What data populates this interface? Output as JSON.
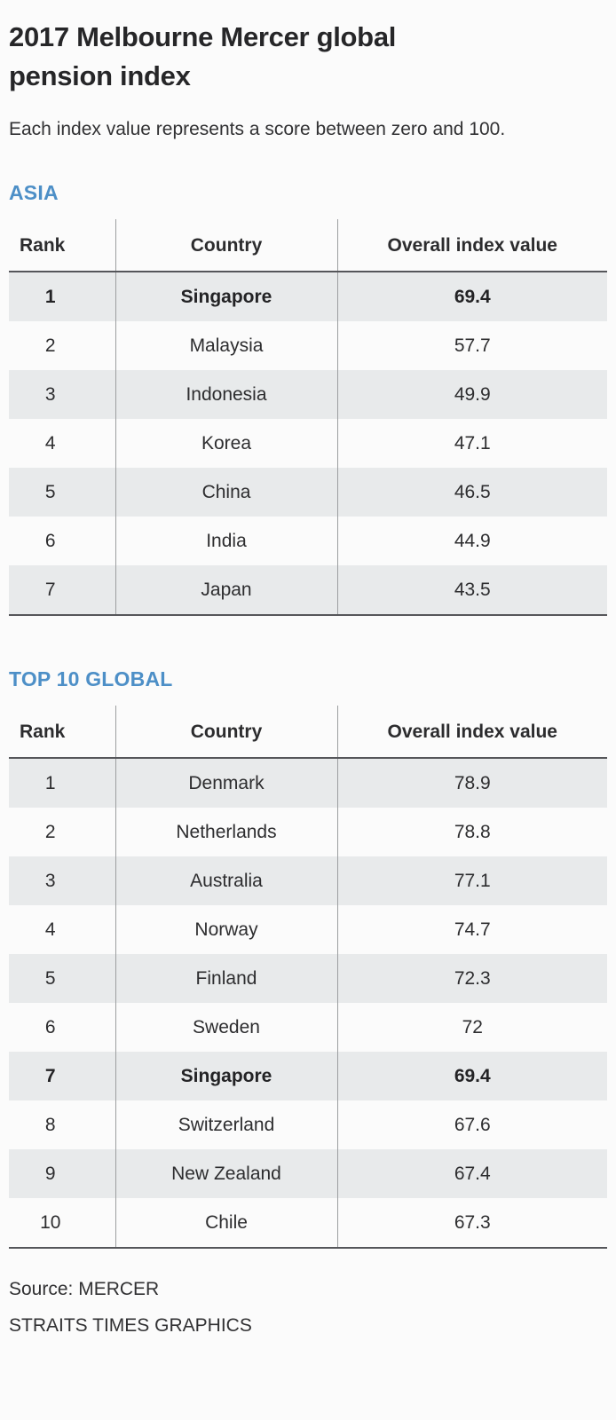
{
  "page": {
    "title_line1": "2017 Melbourne Mercer global",
    "title_line2": "pension index",
    "subtitle": "Each index value represents a score between zero and 100.",
    "source": "Source: MERCER",
    "credit": "STRAITS TIMES GRAPHICS"
  },
  "colors": {
    "accent_blue": "#4d8fc7",
    "row_shade": "#e8eaeb",
    "dark_rule": "#55565a",
    "column_divider": "#9c9ea0",
    "background": "#fbfbfb"
  },
  "tables": [
    {
      "section": "ASIA",
      "columns": [
        "Rank",
        "Country",
        "Overall index value"
      ],
      "rows": [
        {
          "rank": "1",
          "country": "Singapore",
          "value": "69.4",
          "highlight": true
        },
        {
          "rank": "2",
          "country": "Malaysia",
          "value": "57.7",
          "highlight": false
        },
        {
          "rank": "3",
          "country": "Indonesia",
          "value": "49.9",
          "highlight": false
        },
        {
          "rank": "4",
          "country": "Korea",
          "value": "47.1",
          "highlight": false
        },
        {
          "rank": "5",
          "country": "China",
          "value": "46.5",
          "highlight": false
        },
        {
          "rank": "6",
          "country": "India",
          "value": "44.9",
          "highlight": false
        },
        {
          "rank": "7",
          "country": "Japan",
          "value": "43.5",
          "highlight": false
        }
      ]
    },
    {
      "section": "TOP 10 GLOBAL",
      "columns": [
        "Rank",
        "Country",
        "Overall index value"
      ],
      "rows": [
        {
          "rank": "1",
          "country": "Denmark",
          "value": "78.9",
          "highlight": false
        },
        {
          "rank": "2",
          "country": "Netherlands",
          "value": "78.8",
          "highlight": false
        },
        {
          "rank": "3",
          "country": "Australia",
          "value": "77.1",
          "highlight": false
        },
        {
          "rank": "4",
          "country": "Norway",
          "value": "74.7",
          "highlight": false
        },
        {
          "rank": "5",
          "country": "Finland",
          "value": "72.3",
          "highlight": false
        },
        {
          "rank": "6",
          "country": "Sweden",
          "value": "72",
          "highlight": false
        },
        {
          "rank": "7",
          "country": "Singapore",
          "value": "69.4",
          "highlight": true
        },
        {
          "rank": "8",
          "country": "Switzerland",
          "value": "67.6",
          "highlight": false
        },
        {
          "rank": "9",
          "country": "New Zealand",
          "value": "67.4",
          "highlight": false
        },
        {
          "rank": "10",
          "country": "Chile",
          "value": "67.3",
          "highlight": false
        }
      ]
    }
  ],
  "chart_data": [
    {
      "type": "table",
      "title": "2017 Melbourne Mercer global pension index — ASIA",
      "columns": [
        "Rank",
        "Country",
        "Overall index value"
      ],
      "categories": [
        "Singapore",
        "Malaysia",
        "Indonesia",
        "Korea",
        "China",
        "India",
        "Japan"
      ],
      "values": [
        69.4,
        57.7,
        49.9,
        47.1,
        46.5,
        44.9,
        43.5
      ],
      "value_range": [
        0,
        100
      ],
      "highlighted_row": "Singapore"
    },
    {
      "type": "table",
      "title": "2017 Melbourne Mercer global pension index — TOP 10 GLOBAL",
      "columns": [
        "Rank",
        "Country",
        "Overall index value"
      ],
      "categories": [
        "Denmark",
        "Netherlands",
        "Australia",
        "Norway",
        "Finland",
        "Sweden",
        "Singapore",
        "Switzerland",
        "New Zealand",
        "Chile"
      ],
      "values": [
        78.9,
        78.8,
        77.1,
        74.7,
        72.3,
        72,
        69.4,
        67.6,
        67.4,
        67.3
      ],
      "value_range": [
        0,
        100
      ],
      "highlighted_row": "Singapore"
    }
  ]
}
